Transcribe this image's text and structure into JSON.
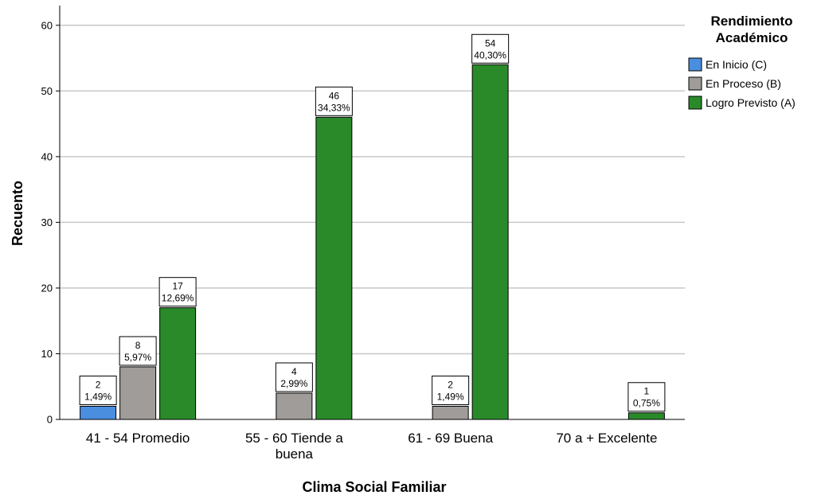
{
  "chart_data": {
    "type": "bar",
    "title": "",
    "xlabel": "Clima Social Familiar",
    "ylabel": "Recuento",
    "ylim": [
      0,
      63
    ],
    "yticks": [
      0,
      10,
      20,
      30,
      40,
      50,
      60
    ],
    "grid": true,
    "legend_position": "top-right",
    "legend_title": [
      "Rendimiento",
      "Académico"
    ],
    "categories": [
      [
        "41 - 54 Promedio"
      ],
      [
        "55 - 60 Tiende a",
        "buena"
      ],
      [
        "61 - 69 Buena"
      ],
      [
        "70 a + Excelente"
      ]
    ],
    "series": [
      {
        "name": "En Inicio (C)",
        "color": "#4a8ee0",
        "values": [
          2,
          null,
          null,
          null
        ],
        "labels": [
          [
            "2",
            "1,49%"
          ],
          null,
          null,
          null
        ]
      },
      {
        "name": "En Proceso (B)",
        "color": "#a09c9a",
        "values": [
          8,
          4,
          2,
          null
        ],
        "labels": [
          [
            "8",
            "5,97%"
          ],
          [
            "4",
            "2,99%"
          ],
          [
            "2",
            "1,49%"
          ],
          null
        ]
      },
      {
        "name": "Logro Previsto (A)",
        "color": "#2a8a2a",
        "values": [
          17,
          46,
          54,
          1
        ],
        "labels": [
          [
            "17",
            "12,69%"
          ],
          [
            "46",
            "34,33%"
          ],
          [
            "54",
            "40,30%"
          ],
          [
            "1",
            "0,75%"
          ]
        ]
      }
    ]
  }
}
